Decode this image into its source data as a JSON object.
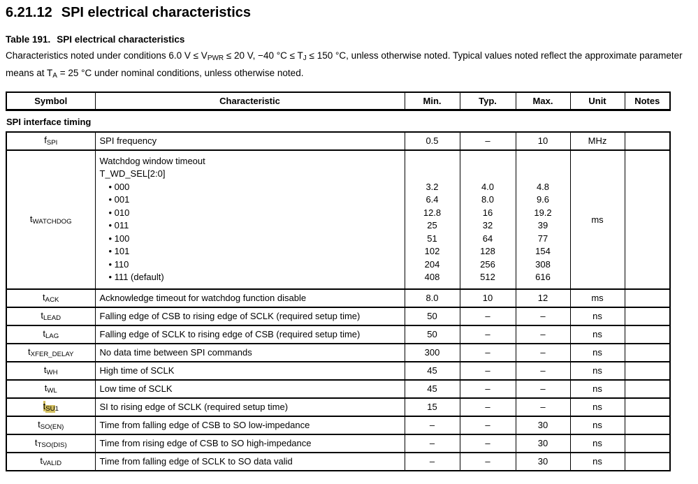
{
  "document": {
    "section_number": "6.21.12",
    "section_title": "SPI electrical characteristics",
    "table_label": "Table 191.",
    "table_title": "SPI electrical characteristics",
    "conditions": [
      {
        "t": "Characteristics noted under conditions 6.0 V ≤ V"
      },
      {
        "t": "PWR",
        "sub": true
      },
      {
        "t": " ≤ 20 V, −40 °C ≤ T"
      },
      {
        "t": "J",
        "sub": true
      },
      {
        "t": " ≤ 150 °C, unless otherwise noted. Typical values noted reflect the approximate parameter means at T"
      },
      {
        "t": "A",
        "sub": true
      },
      {
        "t": " = 25 °C under nominal conditions, unless otherwise noted."
      }
    ]
  },
  "table": {
    "headers": [
      "Symbol",
      "Characteristic",
      "Min.",
      "Typ.",
      "Max.",
      "Unit",
      "Notes"
    ],
    "group_header": "SPI interface timing",
    "highlight_color": "#d3bf5e",
    "text_color": "#000000",
    "border_color": "#000000",
    "background_color": "#ffffff",
    "rows": [
      {
        "symbol": [
          {
            "t": "f"
          },
          {
            "t": "SPI",
            "sub": true
          }
        ],
        "characteristic": "SPI frequency",
        "min": "0.5",
        "typ": "–",
        "max": "10",
        "unit": "MHz",
        "notes": ""
      },
      {
        "symbol": [
          {
            "t": "t"
          },
          {
            "t": "WATCHDOG",
            "sub": true
          }
        ],
        "characteristic_lines": [
          "Watchdog window timeout",
          "T_WD_SEL[2:0]"
        ],
        "bullets": [
          "000",
          "001",
          "010",
          "011",
          "100",
          "101",
          "110",
          "111 (default)"
        ],
        "min": [
          "3.2",
          "6.4",
          "12.8",
          "25",
          "51",
          "102",
          "204",
          "408"
        ],
        "typ": [
          "4.0",
          "8.0",
          "16",
          "32",
          "64",
          "128",
          "256",
          "512"
        ],
        "max": [
          "4.8",
          "9.6",
          "19.2",
          "39",
          "77",
          "154",
          "308",
          "616"
        ],
        "unit": "ms",
        "notes": ""
      },
      {
        "symbol": [
          {
            "t": "t"
          },
          {
            "t": "ACK",
            "sub": true
          }
        ],
        "characteristic": "Acknowledge timeout for watchdog function disable",
        "min": "8.0",
        "typ": "10",
        "max": "12",
        "unit": "ms",
        "notes": ""
      },
      {
        "symbol": [
          {
            "t": "t"
          },
          {
            "t": "LEAD",
            "sub": true
          }
        ],
        "characteristic": "Falling edge of CSB to rising edge of SCLK (required setup time)",
        "min": "50",
        "typ": "–",
        "max": "–",
        "unit": "ns",
        "notes": ""
      },
      {
        "symbol": [
          {
            "t": "t"
          },
          {
            "t": "LAG",
            "sub": true
          }
        ],
        "characteristic": "Falling edge of SCLK to rising edge of CSB (required setup time)",
        "min": "50",
        "typ": "–",
        "max": "–",
        "unit": "ns",
        "notes": ""
      },
      {
        "symbol": [
          {
            "t": "t"
          },
          {
            "t": "XFER_DELAY",
            "sub": true
          }
        ],
        "characteristic": "No data time between SPI commands",
        "min": "300",
        "typ": "–",
        "max": "–",
        "unit": "ns",
        "notes": ""
      },
      {
        "symbol": [
          {
            "t": "t"
          },
          {
            "t": "WH",
            "sub": true
          }
        ],
        "characteristic": "High time of SCLK",
        "min": "45",
        "typ": "–",
        "max": "–",
        "unit": "ns",
        "notes": ""
      },
      {
        "symbol": [
          {
            "t": "t"
          },
          {
            "t": "WL",
            "sub": true
          }
        ],
        "characteristic": "Low time of SCLK",
        "min": "45",
        "typ": "–",
        "max": "–",
        "unit": "ns",
        "notes": ""
      },
      {
        "symbol": [
          {
            "t": "t",
            "hl": true
          },
          {
            "t": "SU",
            "sub": true,
            "hl": true
          },
          {
            "t": "1",
            "sub": true
          }
        ],
        "characteristic": "SI to rising edge of SCLK (required setup time)",
        "min": "15",
        "typ": "–",
        "max": "–",
        "unit": "ns",
        "notes": ""
      },
      {
        "symbol": [
          {
            "t": "t"
          },
          {
            "t": "SO(EN)",
            "sub": true
          }
        ],
        "characteristic": "Time from falling edge of CSB to SO low-impedance",
        "min": "–",
        "typ": "–",
        "max": "30",
        "unit": "ns",
        "notes": ""
      },
      {
        "symbol": [
          {
            "t": "t"
          },
          {
            "t": "TSO(DIS)",
            "sub": true
          }
        ],
        "characteristic": "Time from rising edge of CSB to SO high-impedance",
        "min": "–",
        "typ": "–",
        "max": "30",
        "unit": "ns",
        "notes": ""
      },
      {
        "symbol": [
          {
            "t": "t"
          },
          {
            "t": "VALID",
            "sub": true
          }
        ],
        "characteristic": "Time from falling edge of SCLK to SO data valid",
        "min": "–",
        "typ": "–",
        "max": "30",
        "unit": "ns",
        "notes": ""
      }
    ]
  }
}
